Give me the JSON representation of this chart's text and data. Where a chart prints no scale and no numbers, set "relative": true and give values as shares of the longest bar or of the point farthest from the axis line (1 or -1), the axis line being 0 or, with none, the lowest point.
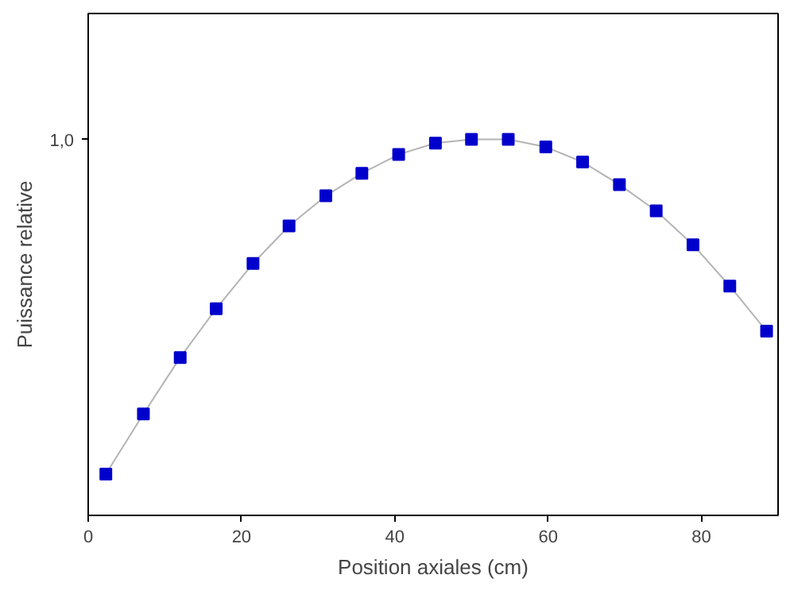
{
  "chart_data": {
    "type": "line",
    "xlabel": "Position axiales (cm)",
    "ylabel": "Puissance relative",
    "relative": true,
    "marker": "square",
    "line_style": "solid",
    "grid": false,
    "annotations": [
      "1,0"
    ],
    "xlim": [
      0,
      90
    ],
    "xticks": [
      0,
      20,
      40,
      60,
      80
    ],
    "series": [
      {
        "color": "#0000cc",
        "x": [
          2.3,
          7.2,
          12,
          16.7,
          21.5,
          26.2,
          31,
          35.7,
          40.5,
          45.3,
          50,
          54.8,
          59.7,
          64.5,
          69.3,
          74.1,
          78.9,
          83.7,
          88.5
        ],
        "values": [
          0.11,
          0.27,
          0.42,
          0.55,
          0.67,
          0.77,
          0.85,
          0.91,
          0.96,
          0.99,
          1.0,
          1.0,
          0.98,
          0.94,
          0.88,
          0.81,
          0.72,
          0.61,
          0.49
        ]
      }
    ]
  }
}
